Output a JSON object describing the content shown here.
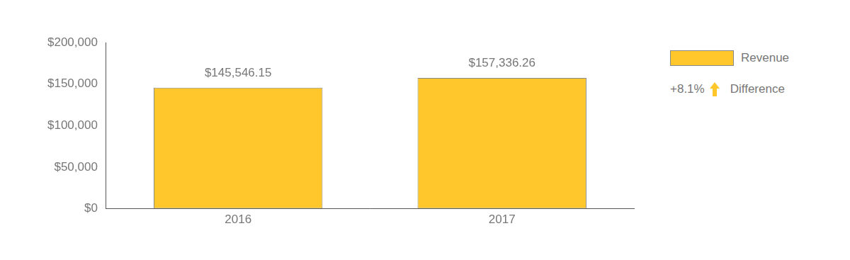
{
  "chart_data": {
    "type": "bar",
    "categories": [
      "2016",
      "2017"
    ],
    "series": [
      {
        "name": "Revenue",
        "color": "#ffc72c",
        "values": [
          145546.15,
          157336.26
        ],
        "value_labels": [
          "$145,546.15",
          "$157,336.26"
        ]
      }
    ],
    "data_labels": true,
    "ylim": [
      0,
      200000
    ],
    "yticks": [
      {
        "value": 0,
        "label": "$0"
      },
      {
        "value": 50000,
        "label": "$50,000"
      },
      {
        "value": 100000,
        "label": "$100,000"
      },
      {
        "value": 150000,
        "label": "$150,000"
      },
      {
        "value": 200000,
        "label": "$200,000"
      }
    ],
    "grid": false,
    "legend": "right",
    "annotation": {
      "value": 8.1,
      "label": "+8.1%",
      "text": "Difference"
    }
  }
}
